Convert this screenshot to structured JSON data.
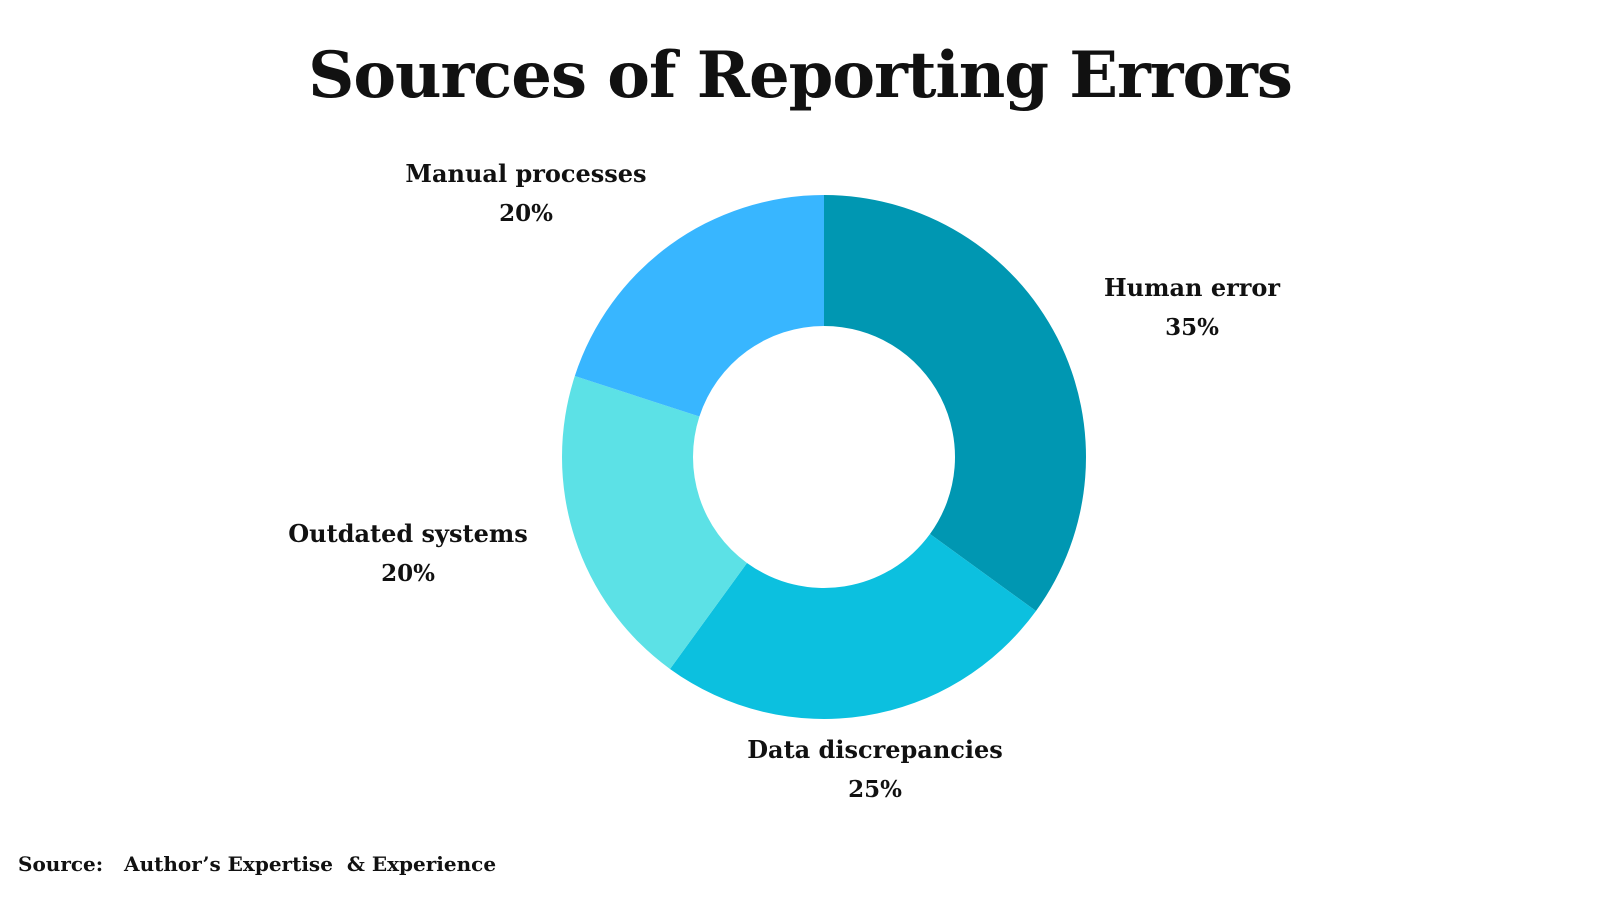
{
  "chart_data": {
    "type": "pie",
    "variant": "donut",
    "title": "Sources of Reporting Errors",
    "categories": [
      "Human error",
      "Data discrepancies",
      "Outdated systems",
      "Manual processes"
    ],
    "values": [
      35,
      25,
      20,
      20
    ],
    "value_labels": [
      "35%",
      "25%",
      "20%",
      "20%"
    ],
    "colors": [
      "#0097b2",
      "#0cc0df",
      "#5ce1e6",
      "#38b6ff"
    ],
    "start_angle_deg": 0,
    "direction": "clockwise",
    "legend": "none"
  },
  "footer": {
    "source_label": "Source:",
    "source_text": "Author’s Expertise  & Experience"
  }
}
